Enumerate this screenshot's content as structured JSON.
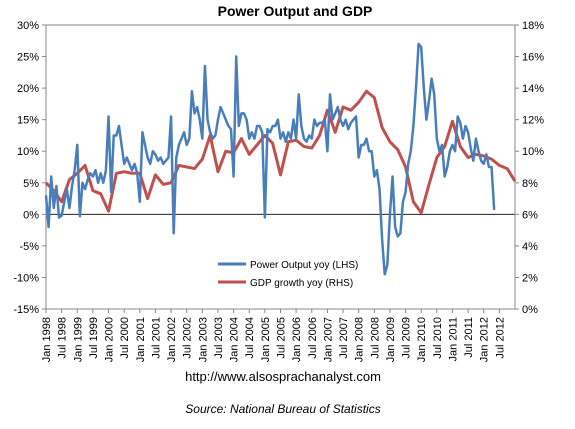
{
  "chart_data": {
    "type": "line",
    "title": "Power Output and GDP",
    "left_axis": {
      "ylim": [
        -15,
        30
      ],
      "ticks": [
        "-15%",
        "-10%",
        "-5%",
        "0%",
        "5%",
        "10%",
        "15%",
        "20%",
        "25%",
        "30%"
      ]
    },
    "right_axis": {
      "ylim": [
        0,
        18
      ],
      "ticks": [
        "0%",
        "2%",
        "4%",
        "6%",
        "8%",
        "10%",
        "12%",
        "14%",
        "16%",
        "18%"
      ]
    },
    "x_tick_labels": [
      "Jan 1998",
      "Jul 1998",
      "Jan 1999",
      "Jul 1999",
      "Jan 2000",
      "Jul 2000",
      "Jan 2001",
      "Jul 2001",
      "Jan 2002",
      "Jul 2002",
      "Jan 2003",
      "Jul 2003",
      "Jan 2004",
      "Jul 2004",
      "Jan 2005",
      "Jul 2005",
      "Jan 2006",
      "Jul 2006",
      "Jan 2007",
      "Jul 2007",
      "Jan 2008",
      "Jul 2008",
      "Jan 2009",
      "Jul 2009",
      "Jan 2010",
      "Jul 2010",
      "Jan 2011",
      "Jul 2011",
      "Jan 2012",
      "Jul 2012"
    ],
    "grid": false,
    "legend_position": "lower-center",
    "series": [
      {
        "name": "Power Output yoy (LHS)",
        "axis": "left",
        "color": "#4a7ebb",
        "points": [
          [
            "1998-01",
            3.0
          ],
          [
            "1998-02",
            -2.0
          ],
          [
            "1998-03",
            6.0
          ],
          [
            "1998-04",
            1.0
          ],
          [
            "1998-05",
            4.5
          ],
          [
            "1998-06",
            -0.5
          ],
          [
            "1998-07",
            -0.2
          ],
          [
            "1998-08",
            2.0
          ],
          [
            "1998-09",
            4.0
          ],
          [
            "1998-10",
            1.0
          ],
          [
            "1998-11",
            4.5
          ],
          [
            "1998-12",
            7.0
          ],
          [
            "1999-01",
            11.0
          ],
          [
            "1999-02",
            -0.3
          ],
          [
            "1999-03",
            5.0
          ],
          [
            "1999-04",
            4.0
          ],
          [
            "1999-05",
            5.5
          ],
          [
            "1999-06",
            6.5
          ],
          [
            "1999-07",
            6.0
          ],
          [
            "1999-08",
            7.0
          ],
          [
            "1999-09",
            5.0
          ],
          [
            "1999-10",
            6.5
          ],
          [
            "1999-11",
            5.0
          ],
          [
            "1999-12",
            7.0
          ],
          [
            "2000-01",
            15.5
          ],
          [
            "2000-02",
            3.5
          ],
          [
            "2000-03",
            12.5
          ],
          [
            "2000-04",
            12.5
          ],
          [
            "2000-05",
            14.0
          ],
          [
            "2000-06",
            11.0
          ],
          [
            "2000-07",
            8.0
          ],
          [
            "2000-08",
            9.0
          ],
          [
            "2000-09",
            8.0
          ],
          [
            "2000-10",
            7.0
          ],
          [
            "2000-11",
            8.0
          ],
          [
            "2000-12",
            6.5
          ],
          [
            "2001-01",
            2.0
          ],
          [
            "2001-02",
            13.0
          ],
          [
            "2001-03",
            11.0
          ],
          [
            "2001-04",
            9.0
          ],
          [
            "2001-05",
            8.0
          ],
          [
            "2001-06",
            10.0
          ],
          [
            "2001-07",
            9.5
          ],
          [
            "2001-08",
            8.5
          ],
          [
            "2001-09",
            9.0
          ],
          [
            "2001-10",
            8.0
          ],
          [
            "2001-11",
            8.5
          ],
          [
            "2001-12",
            9.0
          ],
          [
            "2002-01",
            15.5
          ],
          [
            "2002-02",
            -3.0
          ],
          [
            "2002-03",
            9.0
          ],
          [
            "2002-04",
            11.0
          ],
          [
            "2002-05",
            12.0
          ],
          [
            "2002-06",
            13.0
          ],
          [
            "2002-07",
            11.0
          ],
          [
            "2002-08",
            12.0
          ],
          [
            "2002-09",
            19.5
          ],
          [
            "2002-10",
            16.0
          ],
          [
            "2002-11",
            17.0
          ],
          [
            "2002-12",
            15.0
          ],
          [
            "2003-01",
            12.0
          ],
          [
            "2003-02",
            23.5
          ],
          [
            "2003-03",
            15.0
          ],
          [
            "2003-04",
            13.0
          ],
          [
            "2003-05",
            12.0
          ],
          [
            "2003-06",
            12.5
          ],
          [
            "2003-07",
            15.0
          ],
          [
            "2003-08",
            17.0
          ],
          [
            "2003-09",
            16.0
          ],
          [
            "2003-10",
            15.0
          ],
          [
            "2003-11",
            14.0
          ],
          [
            "2003-12",
            13.5
          ],
          [
            "2004-01",
            6.0
          ],
          [
            "2004-02",
            25.0
          ],
          [
            "2004-03",
            14.0
          ],
          [
            "2004-04",
            16.0
          ],
          [
            "2004-05",
            16.0
          ],
          [
            "2004-06",
            15.0
          ],
          [
            "2004-07",
            12.0
          ],
          [
            "2004-08",
            13.0
          ],
          [
            "2004-09",
            12.0
          ],
          [
            "2004-10",
            14.0
          ],
          [
            "2004-11",
            14.0
          ],
          [
            "2004-12",
            13.0
          ],
          [
            "2005-01",
            -0.5
          ],
          [
            "2005-02",
            13.5
          ],
          [
            "2005-03",
            13.0
          ],
          [
            "2005-04",
            14.0
          ],
          [
            "2005-05",
            14.0
          ],
          [
            "2005-06",
            15.0
          ],
          [
            "2005-07",
            12.0
          ],
          [
            "2005-08",
            13.0
          ],
          [
            "2005-09",
            11.5
          ],
          [
            "2005-10",
            13.0
          ],
          [
            "2005-11",
            12.0
          ],
          [
            "2005-12",
            15.0
          ],
          [
            "2006-01",
            12.0
          ],
          [
            "2006-02",
            19.0
          ],
          [
            "2006-03",
            14.0
          ],
          [
            "2006-04",
            12.0
          ],
          [
            "2006-05",
            11.5
          ],
          [
            "2006-06",
            12.5
          ],
          [
            "2006-07",
            12.0
          ],
          [
            "2006-08",
            15.0
          ],
          [
            "2006-09",
            14.0
          ],
          [
            "2006-10",
            14.5
          ],
          [
            "2006-11",
            14.5
          ],
          [
            "2006-12",
            15.0
          ],
          [
            "2007-01",
            10.0
          ],
          [
            "2007-02",
            19.0
          ],
          [
            "2007-03",
            15.0
          ],
          [
            "2007-04",
            16.0
          ],
          [
            "2007-05",
            17.0
          ],
          [
            "2007-06",
            15.0
          ],
          [
            "2007-07",
            14.0
          ],
          [
            "2007-08",
            15.0
          ],
          [
            "2007-09",
            13.5
          ],
          [
            "2007-10",
            14.5
          ],
          [
            "2007-11",
            15.0
          ],
          [
            "2007-12",
            15.5
          ],
          [
            "2008-01",
            9.0
          ],
          [
            "2008-02",
            11.0
          ],
          [
            "2008-03",
            11.0
          ],
          [
            "2008-04",
            12.0
          ],
          [
            "2008-05",
            10.0
          ],
          [
            "2008-06",
            10.0
          ],
          [
            "2008-07",
            6.0
          ],
          [
            "2008-08",
            7.0
          ],
          [
            "2008-09",
            4.0
          ],
          [
            "2008-10",
            -4.0
          ],
          [
            "2008-11",
            -9.5
          ],
          [
            "2008-12",
            -8.0
          ],
          [
            "2009-01",
            0.0
          ],
          [
            "2009-02",
            6.0
          ],
          [
            "2009-03",
            -2.0
          ],
          [
            "2009-04",
            -3.5
          ],
          [
            "2009-05",
            -3.0
          ],
          [
            "2009-06",
            2.0
          ],
          [
            "2009-07",
            3.5
          ],
          [
            "2009-08",
            8.0
          ],
          [
            "2009-09",
            10.0
          ],
          [
            "2009-10",
            14.0
          ],
          [
            "2009-11",
            20.0
          ],
          [
            "2009-12",
            27.0
          ],
          [
            "2010-01",
            26.5
          ],
          [
            "2010-02",
            20.0
          ],
          [
            "2010-03",
            15.0
          ],
          [
            "2010-04",
            18.0
          ],
          [
            "2010-05",
            21.5
          ],
          [
            "2010-06",
            19.0
          ],
          [
            "2010-07",
            12.0
          ],
          [
            "2010-08",
            10.0
          ],
          [
            "2010-09",
            11.0
          ],
          [
            "2010-10",
            6.0
          ],
          [
            "2010-11",
            7.5
          ],
          [
            "2010-12",
            10.0
          ],
          [
            "2011-01",
            11.0
          ],
          [
            "2011-02",
            10.0
          ],
          [
            "2011-03",
            15.5
          ],
          [
            "2011-04",
            14.5
          ],
          [
            "2011-05",
            12.0
          ],
          [
            "2011-06",
            14.0
          ],
          [
            "2011-07",
            13.0
          ],
          [
            "2011-08",
            10.5
          ],
          [
            "2011-09",
            8.5
          ],
          [
            "2011-10",
            12.0
          ],
          [
            "2011-11",
            10.0
          ],
          [
            "2011-12",
            8.5
          ],
          [
            "2012-01",
            8.0
          ],
          [
            "2012-02",
            9.5
          ],
          [
            "2012-03",
            7.5
          ],
          [
            "2012-04",
            7.5
          ],
          [
            "2012-05",
            0.7
          ]
        ]
      },
      {
        "name": "GDP growth yoy (RHS)",
        "axis": "right",
        "color": "#c0504d",
        "points": [
          [
            "1998-01",
            8.0
          ],
          [
            "1998-04",
            7.5
          ],
          [
            "1998-07",
            6.8
          ],
          [
            "1998-10",
            8.2
          ],
          [
            "1999-01",
            8.6
          ],
          [
            "1999-04",
            9.1
          ],
          [
            "1999-07",
            7.5
          ],
          [
            "1999-10",
            7.3
          ],
          [
            "2000-01",
            6.2
          ],
          [
            "2000-04",
            8.6
          ],
          [
            "2000-07",
            8.7
          ],
          [
            "2000-10",
            8.6
          ],
          [
            "2001-01",
            8.6
          ],
          [
            "2001-04",
            7.0
          ],
          [
            "2001-07",
            8.5
          ],
          [
            "2001-10",
            7.9
          ],
          [
            "2002-01",
            8.0
          ],
          [
            "2002-04",
            9.1
          ],
          [
            "2002-07",
            9.0
          ],
          [
            "2002-10",
            8.9
          ],
          [
            "2003-01",
            9.5
          ],
          [
            "2003-04",
            11.0
          ],
          [
            "2003-07",
            8.7
          ],
          [
            "2003-10",
            10.0
          ],
          [
            "2004-01",
            9.9
          ],
          [
            "2004-04",
            10.8
          ],
          [
            "2004-07",
            9.8
          ],
          [
            "2004-10",
            10.4
          ],
          [
            "2005-01",
            11.0
          ],
          [
            "2005-04",
            10.5
          ],
          [
            "2005-07",
            8.5
          ],
          [
            "2005-10",
            10.6
          ],
          [
            "2006-01",
            10.7
          ],
          [
            "2006-04",
            10.3
          ],
          [
            "2006-07",
            10.2
          ],
          [
            "2006-10",
            11.0
          ],
          [
            "2007-01",
            12.6
          ],
          [
            "2007-04",
            11.2
          ],
          [
            "2007-07",
            12.8
          ],
          [
            "2007-10",
            12.6
          ],
          [
            "2008-01",
            13.1
          ],
          [
            "2008-04",
            13.8
          ],
          [
            "2008-07",
            13.4
          ],
          [
            "2008-10",
            11.5
          ],
          [
            "2009-01",
            10.6
          ],
          [
            "2009-04",
            10.1
          ],
          [
            "2009-07",
            9.0
          ],
          [
            "2009-10",
            6.8
          ],
          [
            "2010-01",
            6.1
          ],
          [
            "2010-04",
            7.9
          ],
          [
            "2010-07",
            9.6
          ],
          [
            "2010-10",
            10.3
          ],
          [
            "2011-01",
            11.9
          ],
          [
            "2011-04",
            10.3
          ],
          [
            "2011-07",
            9.6
          ],
          [
            "2011-10",
            9.8
          ],
          [
            "2012-01",
            9.7
          ],
          [
            "2012-04",
            9.5
          ],
          [
            "2012-07",
            9.1
          ],
          [
            "2012-10",
            8.9
          ],
          [
            "2013-01",
            8.1
          ]
        ]
      }
    ],
    "annotations": [
      "http://www.alsosprachanalyst.com",
      "Source: National Bureau of Statistics"
    ]
  }
}
